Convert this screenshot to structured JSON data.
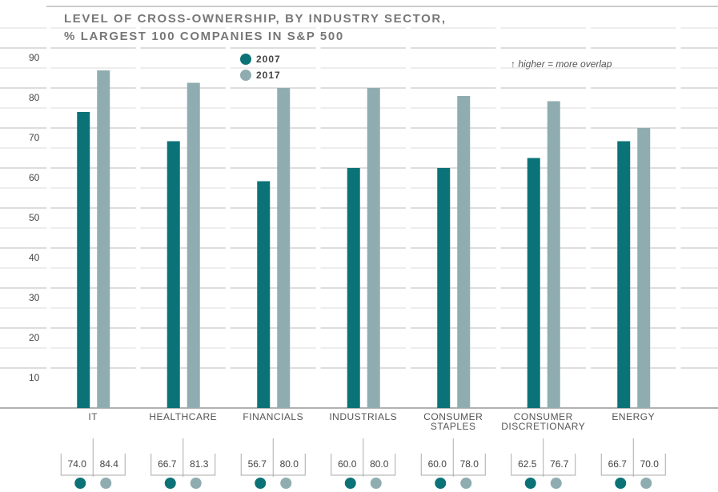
{
  "chart_data": {
    "type": "bar",
    "title": [
      "LEVEL OF CROSS-OWNERSHIP, BY INDUSTRY SECTOR,",
      "% LARGEST 100 COMPANIES IN S&P 500"
    ],
    "annotation": "↑ higher = more overlap",
    "categories": [
      "IT",
      "HEALTHCARE",
      "FINANCIALS",
      "INDUSTRIALS",
      "CONSUMER STAPLES",
      "CONSUMER DISCRETIONARY",
      "ENERGY"
    ],
    "series": [
      {
        "name": "2007",
        "color": "#0b7378",
        "values": [
          74.0,
          66.7,
          56.7,
          60.0,
          60.0,
          62.5,
          66.7
        ],
        "value_labels": [
          "74.0",
          "66.7",
          "56.7",
          "60.0",
          "60.0",
          "62.5",
          "66.7"
        ]
      },
      {
        "name": "2017",
        "color": "#8fadb0",
        "values": [
          84.4,
          81.3,
          80.0,
          80.0,
          78.0,
          76.7,
          70.0
        ],
        "value_labels": [
          "84.4",
          "81.3",
          "80.0",
          "80.0",
          "78.0",
          "76.7",
          "70.0"
        ]
      }
    ],
    "ylim": [
      0,
      100
    ],
    "yticks": [
      10,
      20,
      30,
      40,
      50,
      60,
      70,
      80,
      90
    ],
    "grid": true
  }
}
